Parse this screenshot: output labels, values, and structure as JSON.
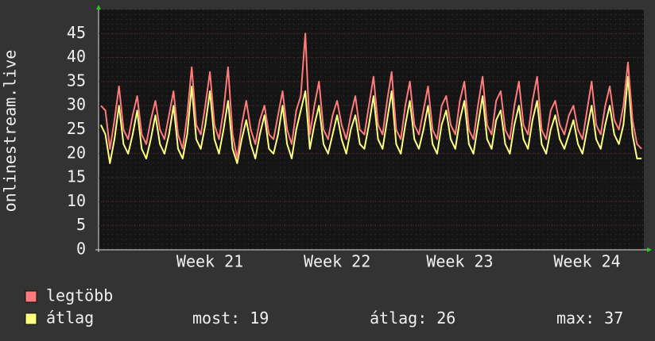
{
  "chart_data": {
    "type": "line",
    "y_label": "onlinestream.live",
    "categories": [
      null,
      null,
      null,
      null,
      null,
      null,
      null,
      null,
      null,
      null,
      null,
      null,
      null,
      null,
      null,
      null,
      null,
      null,
      null,
      null,
      null,
      null,
      null,
      null,
      "Week 21",
      null,
      null,
      null,
      null,
      null,
      null,
      null,
      null,
      null,
      null,
      null,
      null,
      null,
      null,
      null,
      null,
      null,
      null,
      null,
      null,
      null,
      null,
      null,
      null,
      null,
      null,
      null,
      "Week 22",
      null,
      null,
      null,
      null,
      null,
      null,
      null,
      null,
      null,
      null,
      null,
      null,
      null,
      null,
      null,
      null,
      null,
      null,
      null,
      null,
      null,
      null,
      null,
      null,
      null,
      null,
      "Week 23",
      null,
      null,
      null,
      null,
      null,
      null,
      null,
      null,
      null,
      null,
      null,
      null,
      null,
      null,
      null,
      null,
      null,
      null,
      null,
      null,
      null,
      null,
      null,
      null,
      null,
      null,
      null,
      "Week 24",
      null,
      null,
      null,
      null,
      null,
      null,
      null,
      null,
      null,
      null,
      null,
      null
    ],
    "series": [
      {
        "name": "legtöbb",
        "color": "#ff7b7b",
        "values": [
          30,
          29,
          21,
          27,
          34,
          25,
          23,
          28,
          32,
          24,
          22,
          27,
          31,
          25,
          23,
          28,
          33,
          24,
          21,
          28,
          38,
          26,
          24,
          30,
          37,
          26,
          23,
          29,
          38,
          24,
          19,
          26,
          31,
          25,
          22,
          27,
          30,
          24,
          23,
          28,
          33,
          25,
          22,
          29,
          32,
          45,
          24,
          30,
          35,
          25,
          23,
          28,
          31,
          26,
          23,
          28,
          32,
          25,
          24,
          30,
          36,
          26,
          24,
          31,
          37,
          25,
          23,
          30,
          35,
          26,
          24,
          29,
          34,
          25,
          23,
          30,
          32,
          26,
          24,
          31,
          35,
          25,
          23,
          30,
          36,
          26,
          24,
          31,
          33,
          25,
          23,
          30,
          35,
          26,
          24,
          31,
          36,
          25,
          23,
          29,
          31,
          26,
          24,
          28,
          30,
          25,
          23,
          29,
          35,
          26,
          24,
          30,
          34,
          27,
          25,
          30,
          39,
          27,
          22,
          21
        ]
      },
      {
        "name": "átlag",
        "color": "#ffff80",
        "values": [
          26,
          24,
          18,
          23,
          30,
          22,
          20,
          24,
          29,
          21,
          19,
          23,
          28,
          22,
          20,
          24,
          30,
          21,
          19,
          24,
          34,
          23,
          21,
          26,
          33,
          23,
          20,
          25,
          31,
          21,
          18,
          23,
          27,
          22,
          19,
          24,
          28,
          21,
          20,
          24,
          30,
          22,
          19,
          25,
          29,
          33,
          21,
          26,
          30,
          22,
          20,
          24,
          28,
          23,
          20,
          25,
          28,
          22,
          21,
          26,
          32,
          23,
          21,
          27,
          33,
          22,
          20,
          26,
          31,
          23,
          21,
          25,
          30,
          22,
          20,
          26,
          29,
          23,
          21,
          27,
          31,
          22,
          20,
          26,
          32,
          23,
          21,
          27,
          29,
          22,
          20,
          26,
          30,
          23,
          21,
          27,
          31,
          22,
          20,
          25,
          28,
          23,
          21,
          24,
          27,
          22,
          20,
          25,
          30,
          23,
          21,
          26,
          30,
          24,
          22,
          26,
          36,
          24,
          19,
          19
        ]
      }
    ],
    "stats": [
      {
        "label": "most:",
        "value": 19
      },
      {
        "label": "átlag:",
        "value": 26
      },
      {
        "label": "max:",
        "value": 37
      }
    ],
    "ylim": [
      0,
      50
    ],
    "yticks": [
      0,
      5,
      10,
      15,
      20,
      25,
      30,
      35,
      40,
      45
    ],
    "grid": true
  }
}
